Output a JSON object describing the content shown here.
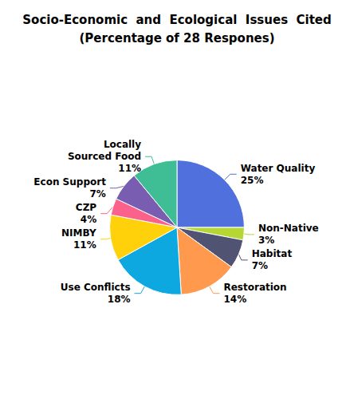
{
  "chart_data": {
    "type": "pie",
    "title": "Socio-Economic  and  Ecological  Issues  Cited",
    "subtitle": "(Percentage of 28 Respones)",
    "categories": [
      "Water Quality",
      "Non-Native",
      "Habitat",
      "Restoration",
      "Use Conflicts",
      "NIMBY",
      "CZP",
      "Econ Support",
      "Locally\nSourced Food"
    ],
    "values": [
      25,
      3,
      7,
      14,
      18,
      11,
      4,
      7,
      11
    ],
    "value_labels": [
      "25%",
      "3%",
      "7%",
      "14%",
      "18%",
      "11%",
      "4%",
      "7%",
      "11%"
    ],
    "data_labels": true
  }
}
